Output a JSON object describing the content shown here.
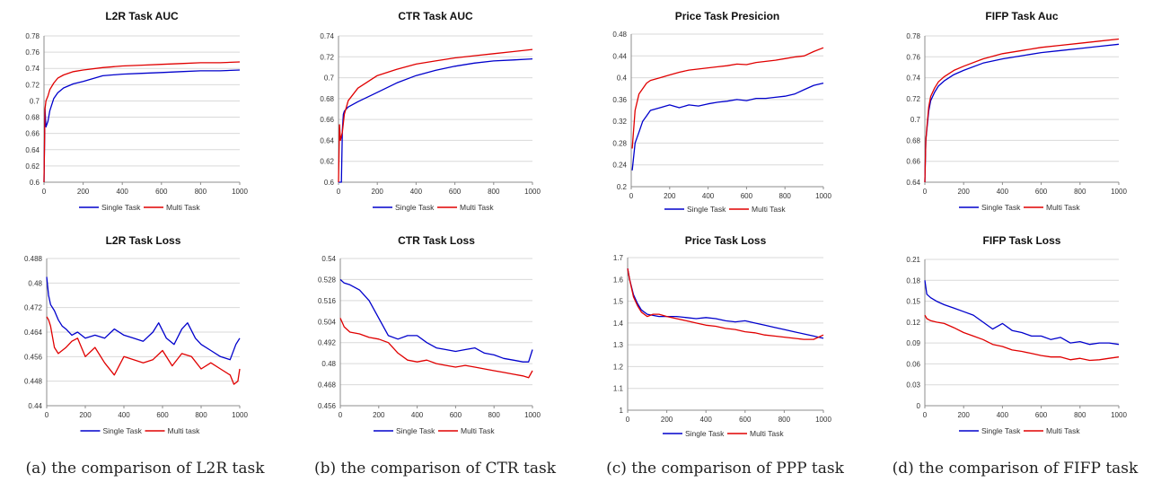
{
  "captions": [
    "(a)  the comparison of L2R task",
    "(b)  the comparison of CTR task",
    "(c)  the comparison of PPP task",
    "(d)  the comparison of FIFP task"
  ],
  "colors": {
    "single": "#0000cc",
    "multi": "#e00000",
    "grid": "#d9d9d9",
    "axis": "#8c8c8c"
  },
  "chart_data": [
    {
      "type": "line",
      "title": "L2R Task AUC",
      "xlim": [
        0,
        1000
      ],
      "ylim": [
        0.6,
        0.78
      ],
      "yticks": [
        0.6,
        0.62,
        0.64,
        0.66,
        0.68,
        0.7,
        0.72,
        0.74,
        0.76,
        0.78
      ],
      "xticks": [
        0,
        200,
        400,
        600,
        800,
        1000
      ],
      "legend": "bottom",
      "series": [
        {
          "name": "Single Task",
          "x": [
            0,
            5,
            10,
            20,
            30,
            50,
            70,
            100,
            150,
            200,
            300,
            400,
            500,
            600,
            700,
            800,
            900,
            1000
          ],
          "y": [
            0.6,
            0.69,
            0.668,
            0.675,
            0.688,
            0.703,
            0.71,
            0.716,
            0.721,
            0.724,
            0.731,
            0.733,
            0.734,
            0.735,
            0.736,
            0.737,
            0.737,
            0.738
          ]
        },
        {
          "name": "Multi Task",
          "x": [
            0,
            5,
            10,
            20,
            30,
            50,
            70,
            100,
            150,
            200,
            300,
            400,
            500,
            600,
            700,
            800,
            900,
            1000
          ],
          "y": [
            0.6,
            0.69,
            0.7,
            0.706,
            0.714,
            0.722,
            0.728,
            0.732,
            0.736,
            0.738,
            0.741,
            0.743,
            0.744,
            0.745,
            0.746,
            0.747,
            0.747,
            0.748
          ]
        }
      ]
    },
    {
      "type": "line",
      "title": "CTR Task AUC",
      "xlim": [
        0,
        1000
      ],
      "ylim": [
        0.6,
        0.74
      ],
      "yticks": [
        0.6,
        0.62,
        0.64,
        0.66,
        0.68,
        0.7,
        0.72,
        0.74
      ],
      "xticks": [
        0,
        200,
        400,
        600,
        800,
        1000
      ],
      "legend": "bottom",
      "series": [
        {
          "name": "Single Task",
          "x": [
            0,
            15,
            20,
            25,
            30,
            50,
            100,
            200,
            300,
            400,
            500,
            600,
            700,
            800,
            900,
            1000
          ],
          "y": [
            0.6,
            0.6,
            0.65,
            0.665,
            0.668,
            0.672,
            0.677,
            0.686,
            0.695,
            0.702,
            0.707,
            0.711,
            0.714,
            0.716,
            0.717,
            0.718
          ]
        },
        {
          "name": "Multi Task",
          "x": [
            0,
            5,
            10,
            20,
            30,
            50,
            100,
            200,
            300,
            400,
            500,
            600,
            700,
            800,
            900,
            1000
          ],
          "y": [
            0.6,
            0.655,
            0.64,
            0.648,
            0.665,
            0.678,
            0.69,
            0.702,
            0.708,
            0.713,
            0.716,
            0.719,
            0.721,
            0.723,
            0.725,
            0.727
          ]
        }
      ]
    },
    {
      "type": "line",
      "title": "Price Task Presicion",
      "xlim": [
        0,
        1000
      ],
      "ylim": [
        0.2,
        0.48
      ],
      "yticks": [
        0.2,
        0.24,
        0.28,
        0.32,
        0.36,
        0.4,
        0.44,
        0.48
      ],
      "xticks": [
        0,
        200,
        400,
        600,
        800,
        1000
      ],
      "legend": "bottom",
      "series": [
        {
          "name": "Single Task",
          "x": [
            5,
            20,
            40,
            60,
            80,
            100,
            150,
            200,
            250,
            300,
            350,
            400,
            450,
            500,
            550,
            600,
            650,
            700,
            750,
            800,
            850,
            900,
            950,
            1000
          ],
          "y": [
            0.23,
            0.28,
            0.3,
            0.32,
            0.33,
            0.34,
            0.345,
            0.35,
            0.345,
            0.35,
            0.348,
            0.352,
            0.355,
            0.357,
            0.36,
            0.358,
            0.362,
            0.362,
            0.364,
            0.366,
            0.37,
            0.378,
            0.386,
            0.39
          ]
        },
        {
          "name": "Multi Task",
          "x": [
            5,
            20,
            40,
            60,
            80,
            100,
            150,
            200,
            250,
            300,
            350,
            400,
            450,
            500,
            550,
            600,
            650,
            700,
            750,
            800,
            850,
            900,
            950,
            1000
          ],
          "y": [
            0.27,
            0.34,
            0.37,
            0.38,
            0.39,
            0.395,
            0.4,
            0.405,
            0.41,
            0.414,
            0.416,
            0.418,
            0.42,
            0.422,
            0.425,
            0.424,
            0.428,
            0.43,
            0.432,
            0.435,
            0.438,
            0.44,
            0.448,
            0.455
          ]
        }
      ]
    },
    {
      "type": "line",
      "title": "FIFP Task Auc",
      "xlim": [
        0,
        1000
      ],
      "ylim": [
        0.64,
        0.78
      ],
      "yticks": [
        0.64,
        0.66,
        0.68,
        0.7,
        0.72,
        0.74,
        0.76,
        0.78
      ],
      "xticks": [
        0,
        200,
        400,
        600,
        800,
        1000
      ],
      "legend": "bottom",
      "series": [
        {
          "name": "Single Task",
          "x": [
            0,
            5,
            10,
            20,
            30,
            50,
            70,
            100,
            150,
            200,
            300,
            400,
            500,
            600,
            700,
            800,
            900,
            1000
          ],
          "y": [
            0.64,
            0.68,
            0.69,
            0.708,
            0.718,
            0.726,
            0.732,
            0.737,
            0.743,
            0.747,
            0.754,
            0.758,
            0.761,
            0.764,
            0.766,
            0.768,
            0.77,
            0.772
          ]
        },
        {
          "name": "Multi Task",
          "x": [
            0,
            5,
            10,
            20,
            30,
            50,
            70,
            100,
            150,
            200,
            300,
            400,
            500,
            600,
            700,
            800,
            900,
            1000
          ],
          "y": [
            0.64,
            0.68,
            0.692,
            0.712,
            0.722,
            0.73,
            0.736,
            0.741,
            0.747,
            0.751,
            0.758,
            0.763,
            0.766,
            0.769,
            0.771,
            0.773,
            0.775,
            0.777
          ]
        }
      ]
    },
    {
      "type": "line",
      "title": "L2R Task Loss",
      "xlim": [
        0,
        1000
      ],
      "ylim": [
        0.44,
        0.488
      ],
      "yticks": [
        0.44,
        0.448,
        0.456,
        0.464,
        0.472,
        0.48,
        0.488
      ],
      "xticks": [
        0,
        200,
        400,
        600,
        800,
        1000
      ],
      "legend": "bottom",
      "series": [
        {
          "name": "Single Task",
          "x": [
            0,
            10,
            20,
            40,
            60,
            80,
            100,
            130,
            160,
            200,
            250,
            300,
            350,
            400,
            450,
            500,
            550,
            580,
            620,
            660,
            700,
            730,
            770,
            800,
            850,
            900,
            950,
            980,
            1000
          ],
          "y": [
            0.482,
            0.476,
            0.473,
            0.471,
            0.468,
            0.466,
            0.465,
            0.463,
            0.464,
            0.462,
            0.463,
            0.462,
            0.465,
            0.463,
            0.462,
            0.461,
            0.464,
            0.467,
            0.462,
            0.46,
            0.465,
            0.467,
            0.462,
            0.46,
            0.458,
            0.456,
            0.455,
            0.46,
            0.462
          ]
        },
        {
          "name": "Multi task",
          "x": [
            0,
            10,
            20,
            40,
            60,
            80,
            100,
            130,
            160,
            200,
            250,
            300,
            350,
            400,
            450,
            500,
            550,
            600,
            650,
            700,
            750,
            800,
            850,
            900,
            950,
            970,
            990,
            1000
          ],
          "y": [
            0.469,
            0.468,
            0.466,
            0.459,
            0.457,
            0.458,
            0.459,
            0.461,
            0.462,
            0.456,
            0.459,
            0.454,
            0.45,
            0.456,
            0.455,
            0.454,
            0.455,
            0.458,
            0.453,
            0.457,
            0.456,
            0.452,
            0.454,
            0.452,
            0.45,
            0.447,
            0.448,
            0.452
          ]
        }
      ]
    },
    {
      "type": "line",
      "title": "CTR Task Loss",
      "xlim": [
        0,
        1000
      ],
      "ylim": [
        0.456,
        0.54
      ],
      "yticks": [
        0.456,
        0.468,
        0.48,
        0.492,
        0.504,
        0.516,
        0.528,
        0.54
      ],
      "xticks": [
        0,
        200,
        400,
        600,
        800,
        1000
      ],
      "legend": "bottom",
      "series": [
        {
          "name": "Single Task",
          "x": [
            0,
            20,
            50,
            100,
            150,
            200,
            250,
            300,
            350,
            400,
            450,
            500,
            550,
            600,
            650,
            700,
            750,
            800,
            850,
            900,
            950,
            980,
            1000
          ],
          "y": [
            0.528,
            0.526,
            0.525,
            0.522,
            0.516,
            0.506,
            0.496,
            0.494,
            0.496,
            0.496,
            0.492,
            0.489,
            0.488,
            0.487,
            0.488,
            0.489,
            0.486,
            0.485,
            0.483,
            0.482,
            0.481,
            0.481,
            0.488
          ]
        },
        {
          "name": "Multi Task",
          "x": [
            0,
            20,
            50,
            100,
            150,
            200,
            250,
            300,
            350,
            400,
            450,
            500,
            550,
            600,
            650,
            700,
            750,
            800,
            850,
            900,
            950,
            980,
            1000
          ],
          "y": [
            0.506,
            0.501,
            0.498,
            0.497,
            0.495,
            0.494,
            0.492,
            0.486,
            0.482,
            0.481,
            0.482,
            0.48,
            0.479,
            0.478,
            0.479,
            0.478,
            0.477,
            0.476,
            0.475,
            0.474,
            0.473,
            0.472,
            0.476
          ]
        }
      ]
    },
    {
      "type": "line",
      "title": "Price Task Loss",
      "xlim": [
        0,
        1000
      ],
      "ylim": [
        1,
        1.7
      ],
      "yticks": [
        1,
        1.1,
        1.2,
        1.3,
        1.4,
        1.5,
        1.6,
        1.7
      ],
      "xticks": [
        0,
        200,
        400,
        600,
        800,
        1000
      ],
      "legend": "bottom",
      "series": [
        {
          "name": "Single Task",
          "x": [
            0,
            10,
            30,
            50,
            70,
            100,
            130,
            160,
            200,
            250,
            300,
            350,
            400,
            450,
            500,
            550,
            600,
            650,
            700,
            750,
            800,
            850,
            900,
            950,
            1000
          ],
          "y": [
            1.65,
            1.6,
            1.53,
            1.49,
            1.46,
            1.44,
            1.435,
            1.43,
            1.43,
            1.43,
            1.425,
            1.42,
            1.425,
            1.42,
            1.41,
            1.405,
            1.41,
            1.4,
            1.39,
            1.38,
            1.37,
            1.36,
            1.35,
            1.34,
            1.33
          ]
        },
        {
          "name": "Multi Task",
          "x": [
            0,
            10,
            30,
            50,
            70,
            100,
            130,
            160,
            200,
            250,
            300,
            350,
            400,
            450,
            500,
            550,
            600,
            650,
            700,
            750,
            800,
            850,
            900,
            950,
            1000
          ],
          "y": [
            1.65,
            1.6,
            1.52,
            1.48,
            1.45,
            1.43,
            1.44,
            1.44,
            1.43,
            1.42,
            1.41,
            1.4,
            1.39,
            1.385,
            1.375,
            1.37,
            1.36,
            1.355,
            1.345,
            1.34,
            1.335,
            1.33,
            1.325,
            1.325,
            1.345
          ]
        }
      ]
    },
    {
      "type": "line",
      "title": "FIFP Task Loss",
      "xlim": [
        0,
        1000
      ],
      "ylim": [
        0,
        0.21
      ],
      "yticks": [
        0,
        0.03,
        0.06,
        0.09,
        0.12,
        0.15,
        0.18,
        0.21
      ],
      "xticks": [
        0,
        200,
        400,
        600,
        800,
        1000
      ],
      "legend": "bottom",
      "series": [
        {
          "name": "Single Task",
          "x": [
            0,
            10,
            30,
            60,
            100,
            150,
            200,
            250,
            300,
            350,
            400,
            450,
            500,
            550,
            600,
            650,
            700,
            750,
            800,
            850,
            900,
            950,
            1000
          ],
          "y": [
            0.18,
            0.16,
            0.155,
            0.15,
            0.145,
            0.14,
            0.135,
            0.13,
            0.12,
            0.11,
            0.118,
            0.108,
            0.105,
            0.1,
            0.1,
            0.095,
            0.098,
            0.09,
            0.092,
            0.088,
            0.09,
            0.09,
            0.088
          ]
        },
        {
          "name": "Multi Task",
          "x": [
            0,
            10,
            30,
            60,
            100,
            150,
            200,
            250,
            300,
            350,
            400,
            450,
            500,
            550,
            600,
            650,
            700,
            750,
            800,
            850,
            900,
            950,
            1000
          ],
          "y": [
            0.13,
            0.125,
            0.122,
            0.12,
            0.118,
            0.112,
            0.105,
            0.1,
            0.095,
            0.088,
            0.085,
            0.08,
            0.078,
            0.075,
            0.072,
            0.07,
            0.07,
            0.066,
            0.068,
            0.065,
            0.066,
            0.068,
            0.07
          ]
        }
      ]
    }
  ]
}
